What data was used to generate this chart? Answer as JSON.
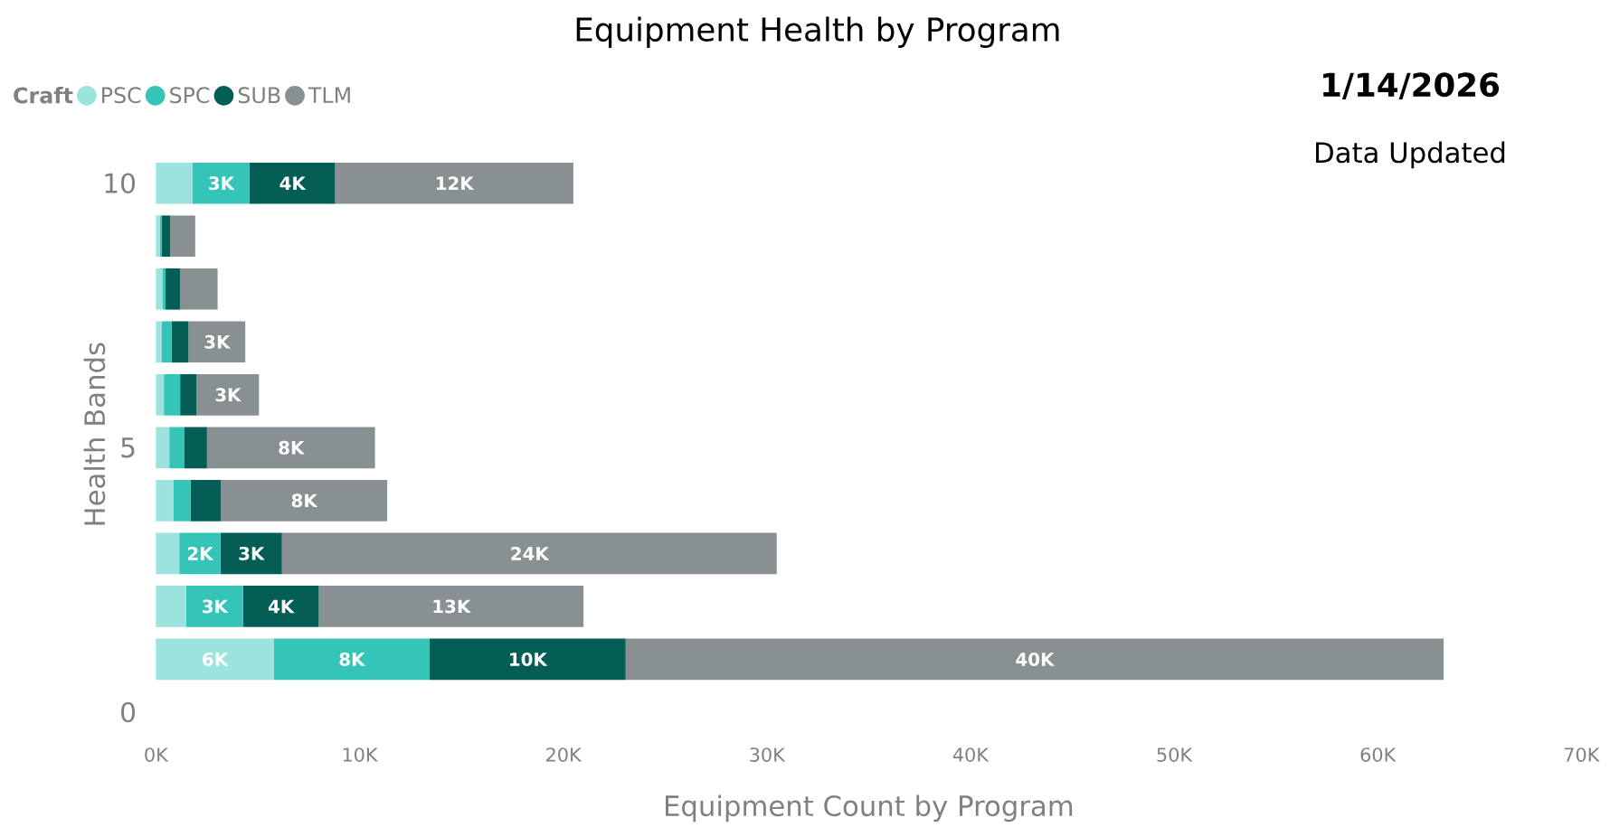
{
  "chart_data": {
    "type": "bar",
    "orientation": "horizontal",
    "stacked": true,
    "title": "Equipment Health by Program",
    "xlabel": "Equipment Count by Program",
    "ylabel": "Health Bands",
    "legend_title": "Craft",
    "legend": "top left",
    "annotations": [
      "1/14/2026",
      "Data Updated"
    ],
    "x": [
      1,
      2,
      3,
      4,
      5,
      6,
      7,
      8,
      9,
      10
    ],
    "xlim": [
      0,
      70000
    ],
    "xticks": [
      {
        "value": 0,
        "label": "0K"
      },
      {
        "value": 10000,
        "label": "10K"
      },
      {
        "value": 20000,
        "label": "20K"
      },
      {
        "value": 30000,
        "label": "30K"
      },
      {
        "value": 40000,
        "label": "40K"
      },
      {
        "value": 50000,
        "label": "50K"
      },
      {
        "value": 60000,
        "label": "60K"
      },
      {
        "value": 70000,
        "label": "70K"
      }
    ],
    "ylim": [
      0,
      10.5
    ],
    "yticks": [
      0,
      5,
      10
    ],
    "series": [
      {
        "name": "PSC",
        "color": "#9be3dc",
        "values": [
          5790,
          1490,
          1150,
          870,
          660,
          390,
          280,
          340,
          190,
          1800
        ],
        "value_labels": [
          "6K",
          null,
          null,
          null,
          null,
          null,
          null,
          null,
          null,
          null
        ]
      },
      {
        "name": "SPC",
        "color": "#35c4b8",
        "values": [
          7650,
          2790,
          2020,
          830,
          720,
          800,
          500,
          130,
          100,
          2800
        ],
        "value_labels": [
          "8K",
          "3K",
          "2K",
          null,
          null,
          null,
          null,
          null,
          null,
          "3K"
        ]
      },
      {
        "name": "SUB",
        "color": "#045e55",
        "values": [
          9630,
          3720,
          3020,
          1490,
          1130,
          810,
          820,
          720,
          420,
          4200
        ],
        "value_labels": [
          "10K",
          "4K",
          "3K",
          null,
          null,
          null,
          null,
          null,
          null,
          "4K"
        ]
      },
      {
        "name": "TLM",
        "color": "#889091",
        "values": [
          40170,
          13000,
          24300,
          8170,
          8250,
          3060,
          2790,
          1840,
          1220,
          11700
        ],
        "value_labels": [
          "40K",
          "13K",
          "24K",
          "8K",
          "8K",
          "3K",
          "3K",
          null,
          null,
          "12K"
        ]
      }
    ]
  }
}
